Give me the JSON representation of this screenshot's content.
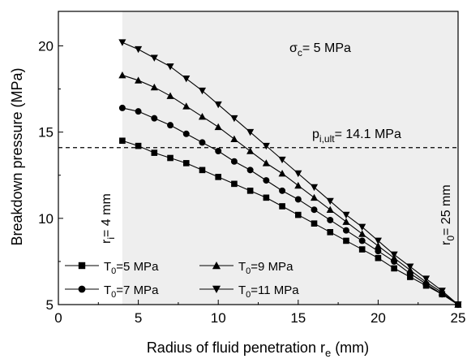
{
  "chart_data": {
    "type": "line",
    "xlabel": "Radius of fluid penetration r",
    "xlabel_sub": "e",
    "xlabel_unit": " (mm)",
    "ylabel": "Breakdown pressure (MPa)",
    "xlim": [
      0,
      25
    ],
    "ylim": [
      5,
      22
    ],
    "xticks": [
      0,
      5,
      10,
      15,
      20,
      25
    ],
    "yticks": [
      5,
      10,
      15,
      20
    ],
    "shaded_region": [
      4,
      25
    ],
    "x": [
      4,
      5,
      6,
      7,
      8,
      9,
      10,
      11,
      12,
      13,
      14,
      15,
      16,
      17,
      18,
      19,
      20,
      21,
      22,
      23,
      24,
      25
    ],
    "series": [
      {
        "name": "T0=5 MPa",
        "marker": "square",
        "values": [
          14.5,
          14.2,
          13.8,
          13.5,
          13.2,
          12.8,
          12.4,
          12.0,
          11.6,
          11.2,
          10.7,
          10.2,
          9.7,
          9.2,
          8.7,
          8.2,
          7.7,
          7.1,
          6.6,
          6.1,
          5.6,
          5.0
        ]
      },
      {
        "name": "T0=7 MPa",
        "marker": "circle",
        "values": [
          16.4,
          16.2,
          15.8,
          15.4,
          14.9,
          14.4,
          13.9,
          13.3,
          12.8,
          12.2,
          11.6,
          11.1,
          10.5,
          9.9,
          9.3,
          8.7,
          8.1,
          7.5,
          6.8,
          6.2,
          5.6,
          5.0
        ]
      },
      {
        "name": "T0=9 MPa",
        "marker": "triangle-up",
        "values": [
          18.3,
          18.0,
          17.6,
          17.1,
          16.5,
          15.9,
          15.3,
          14.6,
          13.9,
          13.2,
          12.6,
          11.9,
          11.2,
          10.5,
          9.8,
          9.1,
          8.4,
          7.7,
          7.0,
          6.3,
          5.7,
          5.0
        ]
      },
      {
        "name": "T0=11 MPa",
        "marker": "triangle-down",
        "values": [
          20.2,
          19.8,
          19.3,
          18.8,
          18.1,
          17.4,
          16.6,
          15.8,
          15.0,
          14.2,
          13.4,
          12.6,
          11.8,
          11.0,
          10.2,
          9.5,
          8.7,
          7.9,
          7.2,
          6.5,
          5.8,
          5.0
        ]
      }
    ],
    "reference_line": {
      "y": 14.1,
      "label_main": "p",
      "label_sub": "i,ult",
      "label_rest": "= 14.1 MPa"
    },
    "annotations": {
      "sigma": {
        "main": "σ",
        "sub": "c",
        "rest": "= 5 MPa"
      },
      "ri": {
        "main": "r",
        "sub": "i",
        "rest": "= 4 mm"
      },
      "r0": {
        "main": "r",
        "sub": "0",
        "rest": "= 25 mm"
      }
    },
    "legend": {
      "items": [
        {
          "main": "T",
          "sub": "0",
          "rest": "=5 MPa",
          "marker": "square"
        },
        {
          "main": "T",
          "sub": "0",
          "rest": "=9 MPa",
          "marker": "triangle-up"
        },
        {
          "main": "T",
          "sub": "0",
          "rest": "=7 MPa",
          "marker": "circle"
        },
        {
          "main": "T",
          "sub": "0",
          "rest": "=11 MPa",
          "marker": "triangle-down"
        }
      ]
    }
  }
}
